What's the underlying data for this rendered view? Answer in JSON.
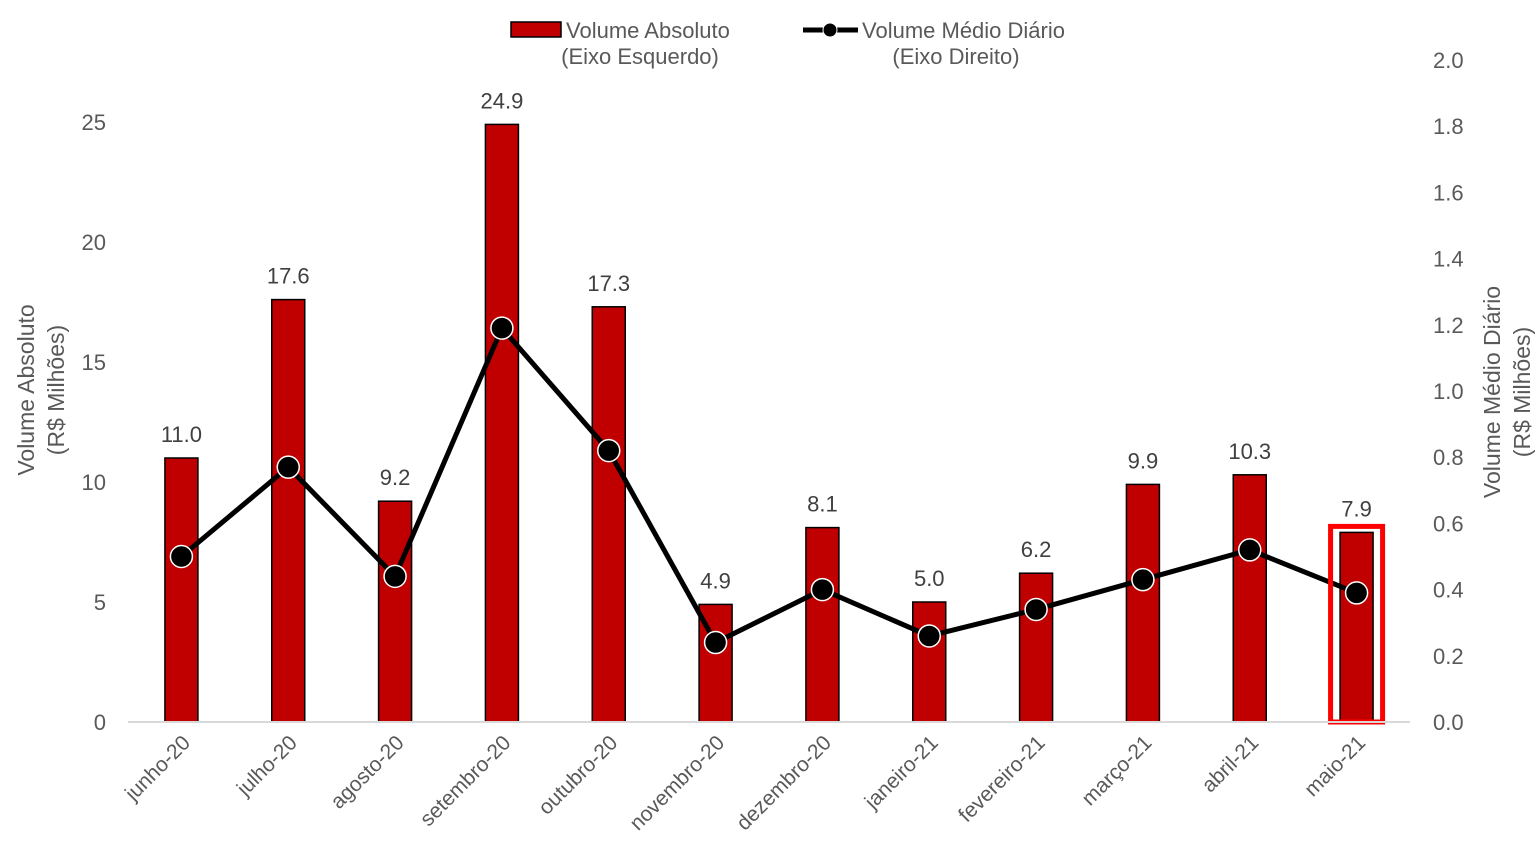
{
  "chart_data": {
    "type": "bar",
    "categories": [
      "junho-20",
      "julho-20",
      "agosto-20",
      "setembro-20",
      "outubro-20",
      "novembro-20",
      "dezembro-20",
      "janeiro-21",
      "fevereiro-21",
      "março-21",
      "abril-21",
      "maio-21"
    ],
    "series": [
      {
        "name": "Volume Absoluto",
        "name_line2": "(Eixo Esquerdo)",
        "type": "bar",
        "axis": "left",
        "values": [
          11.0,
          17.6,
          9.2,
          24.9,
          17.3,
          4.9,
          8.1,
          5.0,
          6.2,
          9.9,
          10.3,
          7.9
        ],
        "labels": [
          "11.0",
          "17.6",
          "9.2",
          "24.9",
          "17.3",
          "4.9",
          "8.1",
          "5.0",
          "6.2",
          "9.9",
          "10.3",
          "7.9"
        ],
        "color": "#c00000"
      },
      {
        "name": "Volume Médio Diário",
        "name_line2": "(Eixo Direito)",
        "type": "line",
        "axis": "right",
        "values": [
          0.5,
          0.77,
          0.44,
          1.19,
          0.82,
          0.24,
          0.4,
          0.26,
          0.34,
          0.43,
          0.52,
          0.39
        ],
        "color": "#000000"
      }
    ],
    "y_left": {
      "title_line1": "Volume Absoluto",
      "title_line2": "(R$ Milhões)",
      "ylim": [
        0,
        28
      ],
      "ticks": [
        0,
        5,
        10,
        15,
        20,
        25
      ],
      "tick_labels": [
        "0",
        "5",
        "10",
        "15",
        "20",
        "25"
      ]
    },
    "y_right": {
      "title_line1": "Volume Médio Diário",
      "title_line2": "(R$ Milhões)",
      "ylim": [
        0,
        2.0
      ],
      "ticks": [
        0,
        0.2,
        0.4,
        0.6,
        0.8,
        1.0,
        1.2,
        1.4,
        1.6,
        1.8,
        2.0
      ],
      "tick_labels": [
        "0.0",
        "0.2",
        "0.4",
        "0.6",
        "0.8",
        "1.0",
        "1.2",
        "1.4",
        "1.6",
        "1.8",
        "2.0"
      ]
    },
    "highlight_category": "maio-21",
    "highlight_color": "#ff0000",
    "legend_position": "top-center",
    "grid": false
  }
}
